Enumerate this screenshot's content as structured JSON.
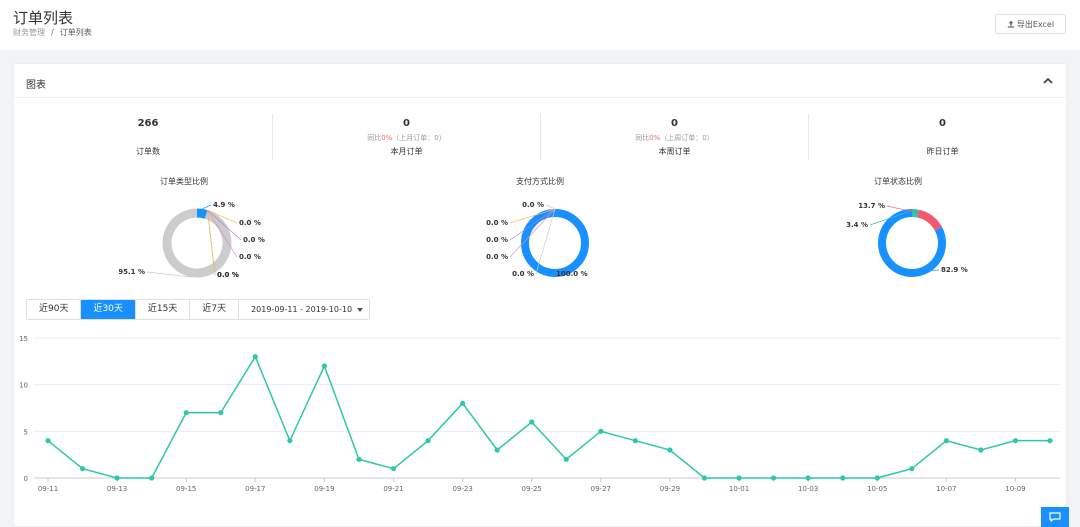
{
  "header": {
    "title": "订单列表",
    "breadcrumb": [
      "财务管理",
      "订单列表"
    ],
    "export_label": "导出Excel"
  },
  "card": {
    "title": "图表",
    "collapse_icon": "chevron-up-icon"
  },
  "stats": [
    {
      "value": "266",
      "sub_prefix": "",
      "sub_red": "",
      "sub_suffix": "",
      "label": "订单数"
    },
    {
      "value": "0",
      "sub_prefix": "同比",
      "sub_red": "0%",
      "sub_suffix": "（上月订单：0）",
      "label": "本月订单"
    },
    {
      "value": "0",
      "sub_prefix": "同比",
      "sub_red": "0%",
      "sub_suffix": "（上周订单：0）",
      "label": "本周订单"
    },
    {
      "value": "0",
      "sub_prefix": "",
      "sub_red": "",
      "sub_suffix": "",
      "label": "昨日订单"
    }
  ],
  "pies": [
    {
      "title": "订单类型比例",
      "slices": [
        {
          "value": 95.1,
          "color": "#cccccc",
          "label": "95.1 %"
        },
        {
          "value": 4.9,
          "color": "#1890ff",
          "label": "4.9 %"
        },
        {
          "value": 0.0,
          "color": "#f4c542",
          "label": "0.0 %"
        },
        {
          "value": 0.0,
          "color": "#b37feb",
          "label": "0.0 %"
        },
        {
          "value": 0.0,
          "color": "#e58cc9",
          "label": "0.0 %"
        },
        {
          "value": 0.0,
          "color": "#9b7fd4",
          "label": "0.0 %"
        },
        {
          "value": 0.0,
          "color": "#f4c542",
          "label": "0.0 %"
        }
      ]
    },
    {
      "title": "支付方式比例",
      "slices": [
        {
          "value": 100.0,
          "color": "#1890ff",
          "label": "100.0 %"
        },
        {
          "value": 0.0,
          "color": "#cccccc",
          "label": "0.0 %"
        },
        {
          "value": 0.0,
          "color": "#f4c542",
          "label": "0.0 %"
        },
        {
          "value": 0.0,
          "color": "#b37feb",
          "label": "0.0 %"
        },
        {
          "value": 0.0,
          "color": "#e58cc9",
          "label": "0.0 %"
        },
        {
          "value": 0.0,
          "color": "#cccccc",
          "label": "0.0 %"
        }
      ]
    },
    {
      "title": "订单状态比例",
      "slices": [
        {
          "value": 82.9,
          "color": "#1890ff",
          "label": "82.9 %"
        },
        {
          "value": 3.4,
          "color": "#2fc4b2",
          "label": "3.4 %"
        },
        {
          "value": 13.7,
          "color": "#f05a6e",
          "label": "13.7 %"
        }
      ]
    }
  ],
  "range": {
    "buttons": [
      "近90天",
      "近30天",
      "近15天",
      "近7天"
    ],
    "active_index": 1,
    "date_range": "2019-09-11 - 2019-10-10"
  },
  "chart_data": {
    "type": "line",
    "x": [
      "09-11",
      "09-12",
      "09-13",
      "09-14",
      "09-15",
      "09-16",
      "09-17",
      "09-18",
      "09-19",
      "09-20",
      "09-21",
      "09-22",
      "09-23",
      "09-24",
      "09-25",
      "09-26",
      "09-27",
      "09-28",
      "09-29",
      "09-30",
      "10-01",
      "10-02",
      "10-03",
      "10-04",
      "10-05",
      "10-06",
      "10-07",
      "10-08",
      "10-09",
      "10-10"
    ],
    "x_tick_labels": [
      "09-11",
      "09-13",
      "09-15",
      "09-17",
      "09-19",
      "09-21",
      "09-23",
      "09-25",
      "09-27",
      "09-29",
      "10-01",
      "10-03",
      "10-05",
      "10-07",
      "10-09"
    ],
    "values": [
      4,
      1,
      0,
      0,
      7,
      7,
      13,
      4,
      12,
      2,
      1,
      4,
      8,
      3,
      6,
      2,
      5,
      4,
      3,
      0,
      0,
      0,
      0,
      0,
      0,
      1,
      4,
      3,
      4,
      4
    ],
    "ylim": [
      0,
      15
    ],
    "y_ticks": [
      0,
      5,
      10,
      15
    ],
    "color": "#2ec7a9",
    "grid": true
  },
  "chat_icon": "chat-bubble-icon"
}
